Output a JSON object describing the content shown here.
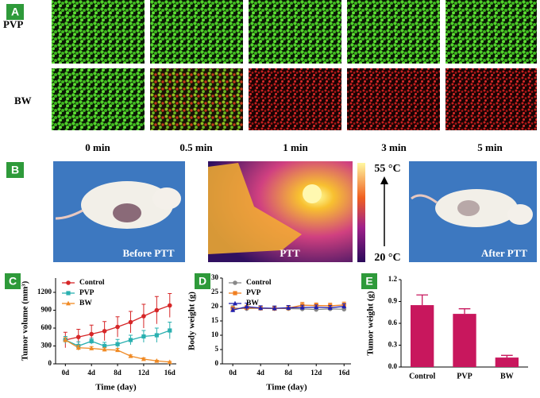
{
  "panels": [
    "A",
    "B",
    "C",
    "D",
    "E"
  ],
  "rows": [
    "PVP",
    "BW"
  ],
  "time_points": [
    "0 min",
    "0.5 min",
    "1 min",
    "3 min",
    "5 min"
  ],
  "photo_captions": [
    "Before PTT",
    "PTT",
    "After PTT"
  ],
  "temperature_scale": [
    "55 °C",
    "20 °C"
  ],
  "chart_data": [
    {
      "type": "line",
      "y_label": "Tumor volume (mm³)",
      "x_label": "Time (day)",
      "x": [
        0,
        2,
        4,
        6,
        8,
        10,
        12,
        14,
        16
      ],
      "xlim": [
        -1.5,
        17
      ],
      "xticks": [
        {
          "value": 0,
          "label": "0d"
        },
        {
          "value": 4,
          "label": "4d"
        },
        {
          "value": 8,
          "label": "8d"
        },
        {
          "value": 12,
          "label": "12d"
        },
        {
          "value": 16,
          "label": "16d"
        }
      ],
      "ylim": [
        0,
        1440
      ],
      "yticks": [
        0,
        300,
        600,
        900,
        1200
      ],
      "legend": "upper left",
      "series": [
        {
          "name": "Control",
          "color": "#d62728",
          "values": [
            400,
            450,
            500,
            550,
            620,
            700,
            800,
            900,
            980
          ],
          "errors": [
            130,
            130,
            150,
            160,
            170,
            180,
            200,
            230,
            200
          ]
        },
        {
          "name": "PVP",
          "color": "#2ab0b0",
          "values": [
            400,
            300,
            380,
            300,
            330,
            400,
            460,
            480,
            560
          ],
          "errors": [
            60,
            70,
            50,
            60,
            80,
            80,
            100,
            120,
            140
          ]
        },
        {
          "name": "BW",
          "color": "#f08a24",
          "values": [
            400,
            270,
            260,
            240,
            230,
            130,
            80,
            50,
            30
          ],
          "errors": [
            40,
            40,
            30,
            30,
            30,
            20,
            20,
            10,
            10
          ]
        }
      ]
    },
    {
      "type": "line",
      "y_label": "Body weight (g)",
      "x_label": "Time (day)",
      "x": [
        0,
        2,
        4,
        6,
        8,
        10,
        12,
        14,
        16
      ],
      "xlim": [
        -1.5,
        17
      ],
      "xticks": [
        {
          "value": 0,
          "label": "0d"
        },
        {
          "value": 4,
          "label": "4d"
        },
        {
          "value": 8,
          "label": "8d"
        },
        {
          "value": 12,
          "label": "12d"
        },
        {
          "value": 16,
          "label": "16d"
        }
      ],
      "ylim": [
        0,
        30
      ],
      "yticks": [
        0,
        5,
        10,
        15,
        20,
        25,
        30
      ],
      "legend": "upper left",
      "series": [
        {
          "name": "Control",
          "color": "#888888",
          "values": [
            19.5,
            19.3,
            19.5,
            19.4,
            19.3,
            19.2,
            19.0,
            19.2,
            19.1
          ],
          "errors": [
            0.8,
            0.8,
            0.7,
            0.8,
            0.7,
            0.8,
            0.8,
            0.7,
            0.8
          ]
        },
        {
          "name": "PVP",
          "color": "#f07f20",
          "values": [
            19.2,
            19.6,
            19.4,
            19.3,
            19.5,
            20.5,
            20.4,
            20.3,
            20.6
          ],
          "errors": [
            0.8,
            0.9,
            0.8,
            0.8,
            0.9,
            1.0,
            0.9,
            0.9,
            1.0
          ]
        },
        {
          "name": "BW",
          "color": "#2020b0",
          "values": [
            18.8,
            20.0,
            19.5,
            19.4,
            19.6,
            19.7,
            19.8,
            19.6,
            20.1
          ],
          "errors": [
            0.7,
            1.2,
            0.8,
            0.8,
            0.8,
            0.8,
            0.8,
            0.8,
            0.9
          ]
        }
      ]
    },
    {
      "type": "bar",
      "y_label": "Tumor weight (g)",
      "categories": [
        "Control",
        "PVP",
        "BW"
      ],
      "values": [
        0.85,
        0.73,
        0.13
      ],
      "errors": [
        0.14,
        0.07,
        0.03
      ],
      "color": "#c8175d",
      "ylim": [
        0,
        1.2
      ],
      "yticks": [
        {
          "value": 0,
          "label": "0.0"
        },
        0.3,
        0.6,
        0.9,
        1.2
      ]
    }
  ]
}
